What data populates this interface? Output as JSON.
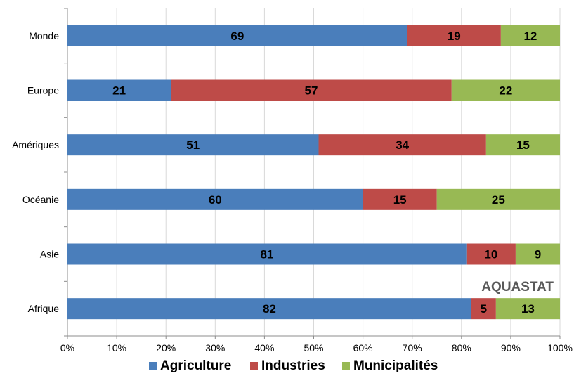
{
  "chart_data": {
    "type": "bar",
    "orientation": "horizontal",
    "stacked": true,
    "percent_stacked": true,
    "categories": [
      "Monde",
      "Europe",
      "Amériques",
      "Océanie",
      "Asie",
      "Afrique"
    ],
    "series": [
      {
        "name": "Agriculture",
        "color": "#4a7ebb",
        "values": [
          69,
          21,
          51,
          60,
          81,
          82
        ]
      },
      {
        "name": "Industries",
        "color": "#be4b48",
        "values": [
          19,
          57,
          34,
          15,
          10,
          5
        ]
      },
      {
        "name": "Municipalités",
        "color": "#98b954",
        "values": [
          12,
          22,
          15,
          25,
          9,
          13
        ]
      }
    ],
    "x_ticks": [
      "0%",
      "10%",
      "20%",
      "30%",
      "40%",
      "50%",
      "60%",
      "70%",
      "80%",
      "90%",
      "100%"
    ],
    "xlim": [
      0,
      100
    ],
    "grid": true,
    "legend_position": "bottom",
    "annotation": "AQUASTAT"
  }
}
